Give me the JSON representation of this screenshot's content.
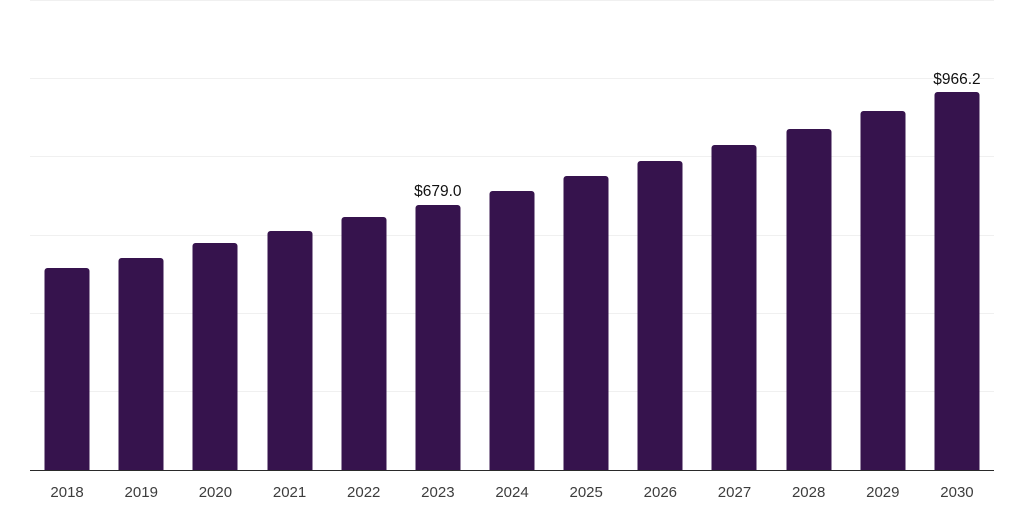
{
  "chart_data": {
    "type": "bar",
    "title": "",
    "xlabel": "",
    "ylabel": "",
    "categories": [
      "2018",
      "2019",
      "2020",
      "2021",
      "2022",
      "2023",
      "2024",
      "2025",
      "2026",
      "2027",
      "2028",
      "2029",
      "2030"
    ],
    "values": [
      515.9,
      543.7,
      581.0,
      611.7,
      646.8,
      679.0,
      714.1,
      751.0,
      789.8,
      830.6,
      873.5,
      918.6,
      966.2
    ],
    "value_labels": {
      "2023": "$679.0",
      "2030": "$966.2"
    },
    "ylim": [
      0,
      1200
    ],
    "gridline_step": 200,
    "grid": true,
    "y_axis_tick_labels_visible": false,
    "legend_position": "none"
  },
  "colors": {
    "bar": "#36134d",
    "gridline": "#f0f0f0",
    "axis_line": "#2a2a2a",
    "tick_label": "#3d3d3d",
    "data_label": "#111111",
    "background": "#ffffff"
  }
}
